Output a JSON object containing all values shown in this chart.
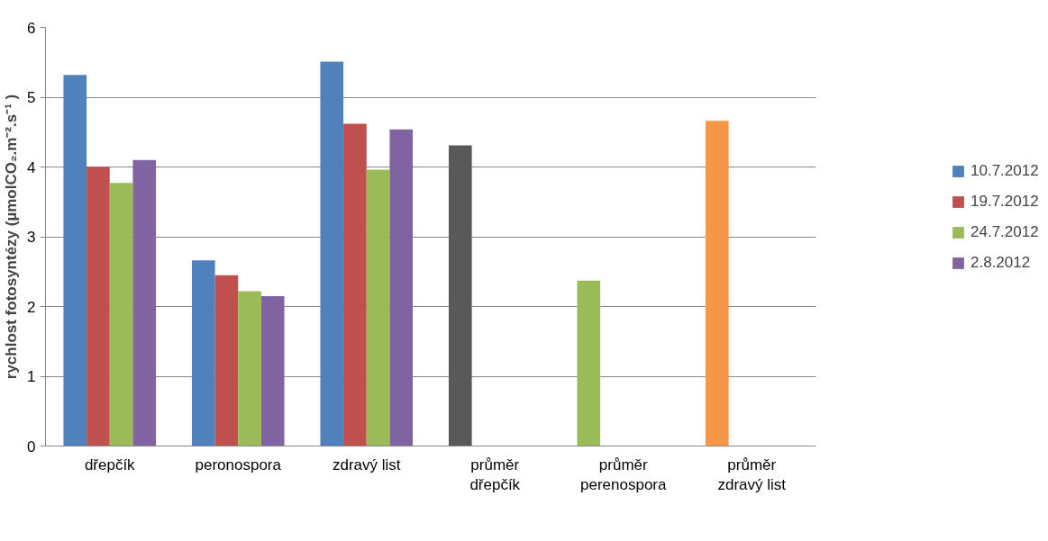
{
  "chart_data": {
    "type": "bar",
    "ylabel": "rychlost fotosyntézy (µmolCO₂.m⁻².s⁻¹ )",
    "categories": [
      "dřepčík",
      "peronospora",
      "zdravý list",
      "průměr dřepčík",
      "průměr perenospora",
      "průměr zdravý list"
    ],
    "series": [
      {
        "name": "10.7.2012",
        "color": "#4f81bd",
        "values": [
          5.32,
          2.66,
          5.51,
          4.31,
          2.37,
          4.66
        ],
        "colors": [
          "#4f81bd",
          "#4f81bd",
          "#4f81bd",
          "#595959",
          "#9bbb59",
          "#f79646"
        ]
      },
      {
        "name": "19.7.2012",
        "color": "#c0504d",
        "values": [
          4.0,
          2.45,
          4.62,
          null,
          null,
          null
        ]
      },
      {
        "name": "24.7.2012",
        "color": "#9bbb59",
        "values": [
          3.77,
          2.22,
          3.96,
          null,
          null,
          null
        ]
      },
      {
        "name": "2.8.2012",
        "color": "#8064a2",
        "values": [
          4.1,
          2.15,
          4.54,
          null,
          null,
          null
        ]
      }
    ],
    "ylim": [
      0,
      6
    ],
    "yticks": [
      0,
      1,
      2,
      3,
      4,
      5,
      6
    ],
    "grid": "y",
    "legend": "right"
  }
}
